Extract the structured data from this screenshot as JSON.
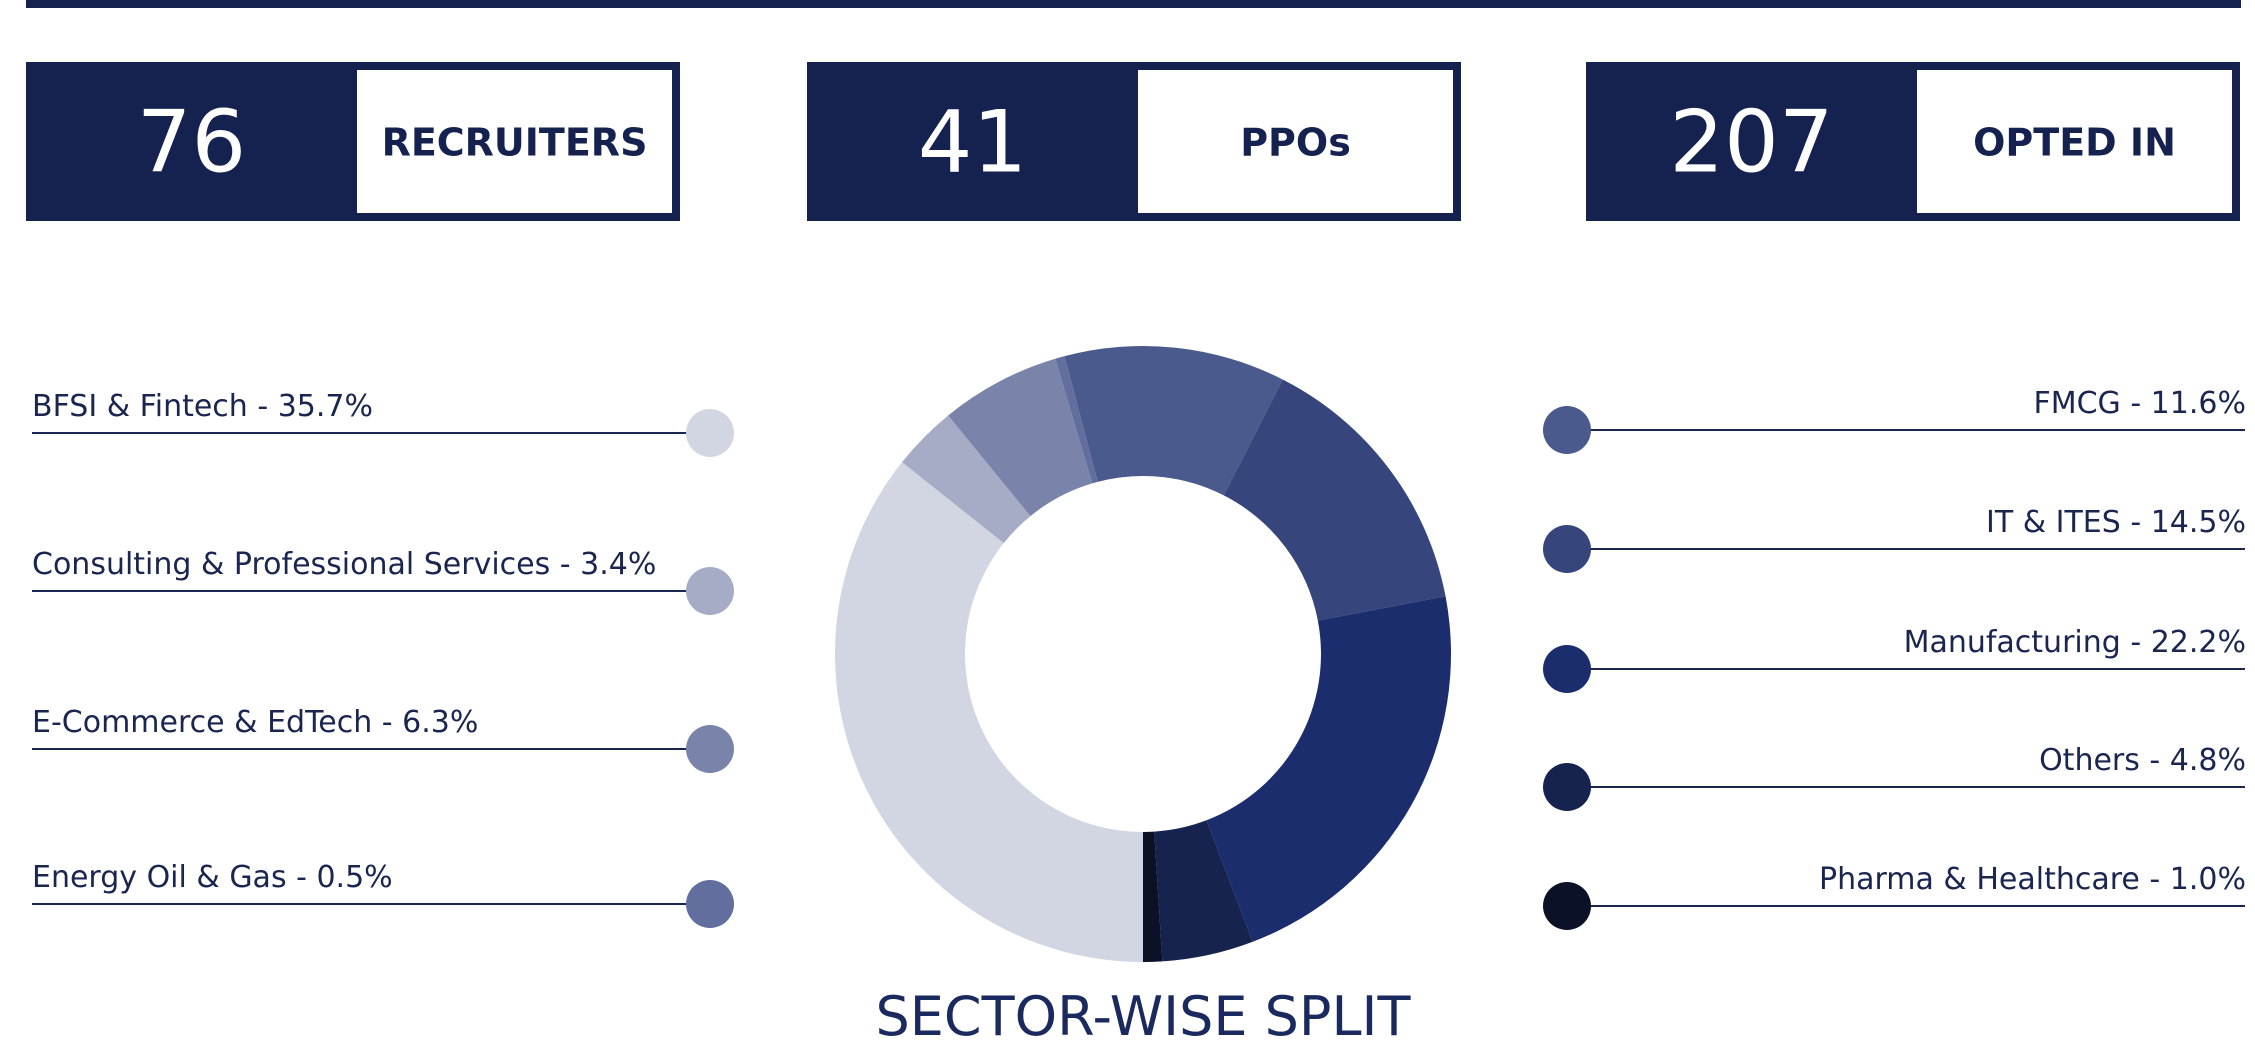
{
  "stats": [
    {
      "value": 76,
      "label": "RECRUITERS"
    },
    {
      "value": 41,
      "label": "PPOs"
    },
    {
      "value": 207,
      "label": "OPTED IN"
    }
  ],
  "chart_data": {
    "type": "donut",
    "title": "SECTOR-WISE SPLIT",
    "categories": [
      "BFSI & Fintech - 35.7%",
      "Consulting & Professional Services - 3.4%",
      "E-Commerce & EdTech - 6.3%",
      "Energy Oil & Gas - 0.5%",
      "FMCG - 11.6%",
      "IT & ITES - 14.5%",
      "Manufacturing - 22.2%",
      "Others - 4.8%",
      "Pharma & Healthcare - 1.0%"
    ],
    "values": [
      35.7,
      3.4,
      6.3,
      0.5,
      11.6,
      14.5,
      22.2,
      4.8,
      1.0
    ],
    "colors": [
      "#d2d6e3",
      "#a6acc6",
      "#7a84aa",
      "#626e9e",
      "#4a5a8c",
      "#36457c",
      "#1c2d6e",
      "#16234f",
      "#0b1126"
    ]
  }
}
